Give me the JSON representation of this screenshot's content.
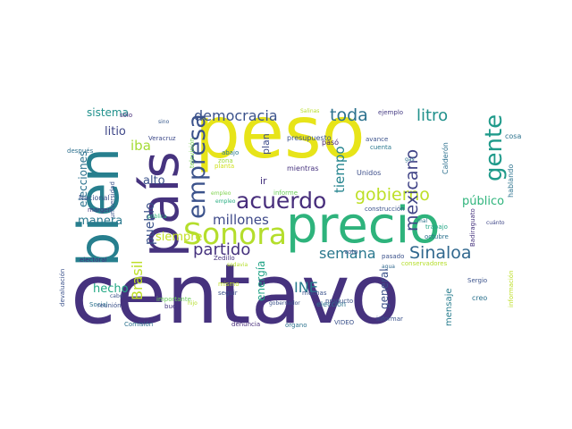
{
  "words": [
    {
      "text": "centavo",
      "color": "#46327e"
    },
    {
      "text": "peso",
      "color": "#e7e419"
    },
    {
      "text": "precio",
      "color": "#2eb37c"
    },
    {
      "text": "país",
      "color": "#46337e"
    },
    {
      "text": "bien",
      "color": "#277f8e"
    },
    {
      "text": "Sonora",
      "color": "#b4de2c"
    },
    {
      "text": "gente",
      "color": "#1f9a8a"
    },
    {
      "text": "acuerdo",
      "color": "#472d7b"
    },
    {
      "text": "empresa",
      "color": "#3b528b"
    },
    {
      "text": "gobierno",
      "color": "#bddf26"
    },
    {
      "text": "partido",
      "color": "#46327e"
    },
    {
      "text": "democracia",
      "color": "#3b528b"
    },
    {
      "text": "toda",
      "color": "#2c728e"
    },
    {
      "text": "litro",
      "color": "#21918c"
    },
    {
      "text": "mexicano",
      "color": "#414487"
    },
    {
      "text": "Sinaloa",
      "color": "#31688e"
    },
    {
      "text": "millones",
      "color": "#3e4989"
    },
    {
      "text": "semana",
      "color": "#2a788e"
    },
    {
      "text": "tiempo",
      "color": "#25848e"
    },
    {
      "text": "INE",
      "color": "#287c8e"
    },
    {
      "text": "Brasil",
      "color": "#bddf26"
    },
    {
      "text": "pueblo",
      "color": "#3b528b"
    },
    {
      "text": "iba",
      "color": "#a5db36"
    },
    {
      "text": "elecciones",
      "color": "#2c728e"
    },
    {
      "text": "sistema",
      "color": "#21918c"
    },
    {
      "text": "litio",
      "color": "#3f4788"
    },
    {
      "text": "alto",
      "color": "#3b528b"
    },
    {
      "text": "siempre",
      "color": "#c2df23"
    },
    {
      "text": "manera",
      "color": "#2a788e"
    },
    {
      "text": "hecho",
      "color": "#22a884"
    },
    {
      "text": "público",
      "color": "#2fb47c"
    },
    {
      "text": "energía",
      "color": "#20a386"
    },
    {
      "text": "general",
      "color": "#3b528b"
    },
    {
      "text": "mensaje",
      "color": "#287d8e"
    },
    {
      "text": "plan",
      "color": "#3e4c8a"
    },
    {
      "text": "ir",
      "color": "#46327e"
    },
    {
      "text": "hablando",
      "color": "#2c728e"
    },
    {
      "text": "cosa",
      "color": "#2c728e"
    },
    {
      "text": "Calderón",
      "color": "#2d708e"
    },
    {
      "text": "Nacional",
      "color": "#3b528b"
    },
    {
      "text": "margen",
      "color": "#453781"
    },
    {
      "text": "después",
      "color": "#2d708e"
    },
    {
      "text": "sólo",
      "color": "#472d7b"
    },
    {
      "text": "Veracruz",
      "color": "#3e4a89"
    },
    {
      "text": "sino",
      "color": "#375a8c"
    },
    {
      "text": "televisión",
      "color": "#7ad151"
    },
    {
      "text": "abajo",
      "color": "#2a788e"
    },
    {
      "text": "zona",
      "color": "#a0da39"
    },
    {
      "text": "planta",
      "color": "#d0e11c"
    },
    {
      "text": "pasó",
      "color": "#482374"
    },
    {
      "text": "presupuesto",
      "color": "#3b528b"
    },
    {
      "text": "mientras",
      "color": "#46327e"
    },
    {
      "text": "Unidos",
      "color": "#3d4e8a"
    },
    {
      "text": "avance",
      "color": "#3b528b"
    },
    {
      "text": "cuenta",
      "color": "#2a788e"
    },
    {
      "text": "gas",
      "color": "#2d708e"
    },
    {
      "text": "ejemplo",
      "color": "#443a83"
    },
    {
      "text": "Salinas",
      "color": "#b8de29"
    },
    {
      "text": "empleo",
      "color": "#7fd34e"
    },
    {
      "text": "empleo",
      "color": "#27ad81"
    },
    {
      "text": "informe",
      "color": "#6ccd5a"
    },
    {
      "text": "construcción",
      "color": "#3b528b"
    },
    {
      "text": "mal",
      "color": "#2c728e"
    },
    {
      "text": "trabajo",
      "color": "#22a785"
    },
    {
      "text": "octubre",
      "color": "#2c728e"
    },
    {
      "text": "cuánto",
      "color": "#3f4788"
    },
    {
      "text": "Badiraguato",
      "color": "#46337e"
    },
    {
      "text": "agua",
      "color": "#31688e"
    },
    {
      "text": "electoral",
      "color": "#472d7b"
    },
    {
      "text": "universidad",
      "color": "#3b528b"
    },
    {
      "text": "pública",
      "color": "#2fb47c"
    },
    {
      "text": "Zedillo",
      "color": "#46327e"
    },
    {
      "text": "sodavia",
      "color": "#b5de2b"
    },
    {
      "text": "mismo",
      "color": "#bddf26"
    },
    {
      "text": "voto",
      "color": "#3b528b"
    },
    {
      "text": "pasado",
      "color": "#3b528b"
    },
    {
      "text": "conservadores",
      "color": "#b5de2b"
    },
    {
      "text": "Sergio",
      "color": "#3b528b"
    },
    {
      "text": "información",
      "color": "#bddf26"
    },
    {
      "text": "creo",
      "color": "#2c728e"
    },
    {
      "text": "devaluación",
      "color": "#3b528b"
    },
    {
      "text": "Social",
      "color": "#2c728e"
    },
    {
      "text": "cabo",
      "color": "#3b528b"
    },
    {
      "text": "buen",
      "color": "#453781"
    },
    {
      "text": "hijo",
      "color": "#b5de2b"
    },
    {
      "text": "importante",
      "color": "#6ccd5a"
    },
    {
      "text": "seguir",
      "color": "#3b528b"
    },
    {
      "text": "producto",
      "color": "#3b528b"
    },
    {
      "text": "muchas",
      "color": "#3b528b"
    },
    {
      "text": "elección",
      "color": "#2c728e"
    },
    {
      "text": "gobernador",
      "color": "#3b528b"
    },
    {
      "text": "reunión",
      "color": "#3b528b"
    },
    {
      "text": "Comisión",
      "color": "#2c728e"
    },
    {
      "text": "denuncia",
      "color": "#472d7b"
    },
    {
      "text": "órgano",
      "color": "#2c728e"
    },
    {
      "text": "VIDEO",
      "color": "#3b528b"
    },
    {
      "text": "informar",
      "color": "#3b528b"
    }
  ]
}
